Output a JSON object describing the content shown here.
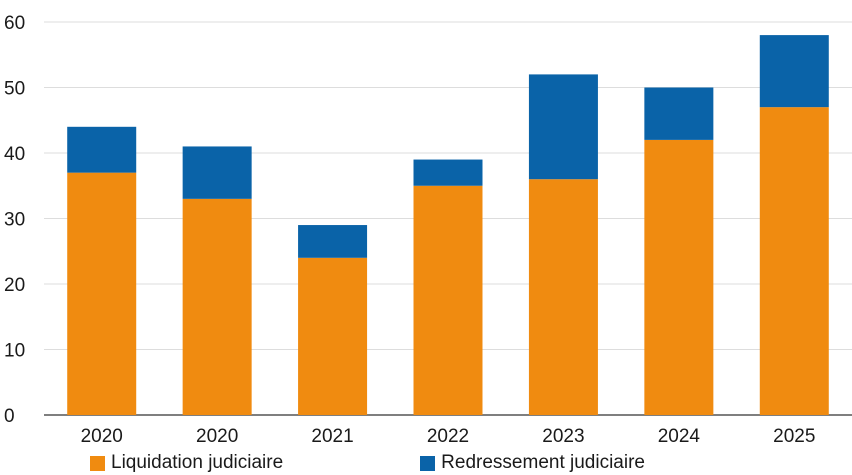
{
  "chart_data": {
    "type": "bar",
    "stacked": true,
    "categories": [
      "2020",
      "2020",
      "2021",
      "2022",
      "2023",
      "2024",
      "2025"
    ],
    "series": [
      {
        "name": "Liquidation judiciaire",
        "color": "#f08b10",
        "values": [
          37,
          33,
          24,
          35,
          36,
          42,
          47
        ]
      },
      {
        "name": "Redressement judiciaire",
        "color": "#0a63a8",
        "values": [
          7,
          8,
          5,
          4,
          16,
          8,
          11
        ]
      }
    ],
    "ylim": [
      0,
      60
    ],
    "yticks": [
      "0",
      "10",
      "20",
      "30",
      "40",
      "50",
      "60"
    ],
    "grid": true,
    "legend_position": "bottom-left"
  }
}
